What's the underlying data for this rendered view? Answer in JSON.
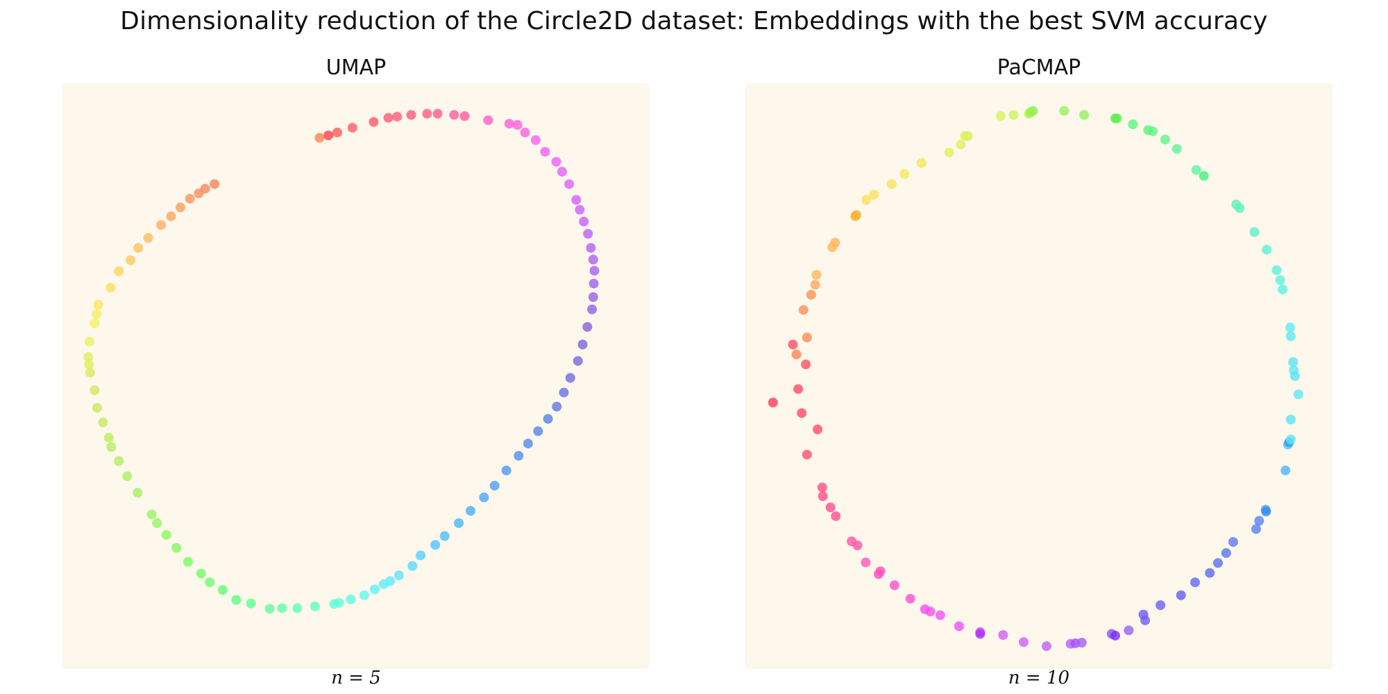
{
  "suptitle": "Dimensionality reduction of the Circle2D dataset: Embeddings with the best SVM accuracy",
  "chart_data": [
    {
      "type": "scatter",
      "title": "UMAP",
      "xlabel": "n = 5",
      "grid": false,
      "xlim": [
        0,
        100
      ],
      "ylim": [
        0,
        100
      ],
      "color_encoding": "hue (rainbow, cyclic)",
      "points": [
        {
          "x": 43.8,
          "y": 90.7,
          "c": "#f6894d"
        },
        {
          "x": 45.3,
          "y": 91.1,
          "c": "#ff3e50"
        },
        {
          "x": 46.8,
          "y": 91.6,
          "c": "#ff5a5d"
        },
        {
          "x": 49.4,
          "y": 92.4,
          "c": "#ff5e66"
        },
        {
          "x": 53.0,
          "y": 93.4,
          "c": "#ff5a6e"
        },
        {
          "x": 55.5,
          "y": 94.1,
          "c": "#ff5b76"
        },
        {
          "x": 57.0,
          "y": 94.3,
          "c": "#ff5c79"
        },
        {
          "x": 59.4,
          "y": 94.6,
          "c": "#ff5b83"
        },
        {
          "x": 62.1,
          "y": 94.8,
          "c": "#ff5c8b"
        },
        {
          "x": 63.9,
          "y": 94.8,
          "c": "#ff5c8f"
        },
        {
          "x": 66.7,
          "y": 94.6,
          "c": "#ff5c9c"
        },
        {
          "x": 68.5,
          "y": 94.4,
          "c": "#ff5ca3"
        },
        {
          "x": 72.5,
          "y": 93.7,
          "c": "#ff5cc7"
        },
        {
          "x": 76.1,
          "y": 93.1,
          "c": "#ff5ed9"
        },
        {
          "x": 77.5,
          "y": 92.9,
          "c": "#ff5ee0"
        },
        {
          "x": 78.8,
          "y": 91.6,
          "c": "#ff5ee8"
        },
        {
          "x": 80.6,
          "y": 90.3,
          "c": "#fb5ff2"
        },
        {
          "x": 82.2,
          "y": 88.3,
          "c": "#f35ff7"
        },
        {
          "x": 84.1,
          "y": 86.6,
          "c": "#ec5ffd"
        },
        {
          "x": 85.1,
          "y": 84.9,
          "c": "#e55fff"
        },
        {
          "x": 86.3,
          "y": 82.8,
          "c": "#dd5fff"
        },
        {
          "x": 87.5,
          "y": 80.1,
          "c": "#d35fff"
        },
        {
          "x": 88.1,
          "y": 78.4,
          "c": "#cc5fff"
        },
        {
          "x": 88.8,
          "y": 76.4,
          "c": "#c45fff"
        },
        {
          "x": 89.5,
          "y": 74.3,
          "c": "#bc5ffd"
        },
        {
          "x": 90.0,
          "y": 71.9,
          "c": "#b45ff7"
        },
        {
          "x": 90.4,
          "y": 69.9,
          "c": "#ad5ff3"
        },
        {
          "x": 90.6,
          "y": 68.0,
          "c": "#a75fef"
        },
        {
          "x": 90.5,
          "y": 65.8,
          "c": "#a05fea"
        },
        {
          "x": 90.4,
          "y": 63.5,
          "c": "#985fe6"
        },
        {
          "x": 90.2,
          "y": 61.4,
          "c": "#925fe0"
        },
        {
          "x": 89.4,
          "y": 58.4,
          "c": "#865fdb"
        },
        {
          "x": 88.6,
          "y": 55.4,
          "c": "#7d63da"
        },
        {
          "x": 87.8,
          "y": 52.6,
          "c": "#7468dc"
        },
        {
          "x": 86.5,
          "y": 49.7,
          "c": "#6b6ddd"
        },
        {
          "x": 85.4,
          "y": 47.2,
          "c": "#6673df"
        },
        {
          "x": 84.2,
          "y": 44.8,
          "c": "#5f78e1"
        },
        {
          "x": 82.7,
          "y": 42.7,
          "c": "#5a7fe3"
        },
        {
          "x": 81.0,
          "y": 40.6,
          "c": "#5785e6"
        },
        {
          "x": 79.3,
          "y": 38.5,
          "c": "#558ae9"
        },
        {
          "x": 77.7,
          "y": 36.4,
          "c": "#5190ec"
        },
        {
          "x": 75.6,
          "y": 33.9,
          "c": "#4f98ef"
        },
        {
          "x": 73.6,
          "y": 31.3,
          "c": "#4e9ff2"
        },
        {
          "x": 71.8,
          "y": 29.3,
          "c": "#4ca6f5"
        },
        {
          "x": 69.5,
          "y": 27.0,
          "c": "#4baef8"
        },
        {
          "x": 67.5,
          "y": 24.9,
          "c": "#4ab6fb"
        },
        {
          "x": 65.1,
          "y": 22.7,
          "c": "#4bbffd"
        },
        {
          "x": 63.5,
          "y": 21.2,
          "c": "#4ec7fe"
        },
        {
          "x": 61.0,
          "y": 19.4,
          "c": "#55d1ff"
        },
        {
          "x": 59.6,
          "y": 17.6,
          "c": "#5ad9ff"
        },
        {
          "x": 57.3,
          "y": 16.0,
          "c": "#5fe3ff"
        },
        {
          "x": 55.8,
          "y": 15.0,
          "c": "#5fe9ff"
        },
        {
          "x": 54.7,
          "y": 14.5,
          "c": "#5fedfd"
        },
        {
          "x": 53.2,
          "y": 13.6,
          "c": "#5ff3f6"
        },
        {
          "x": 51.4,
          "y": 12.6,
          "c": "#5ff8ee"
        },
        {
          "x": 49.1,
          "y": 11.9,
          "c": "#5ffbe3"
        },
        {
          "x": 47.1,
          "y": 11.3,
          "c": "#5ffcdb"
        },
        {
          "x": 46.3,
          "y": 11.1,
          "c": "#5ffcd6"
        },
        {
          "x": 43.0,
          "y": 10.7,
          "c": "#5ffdc4"
        },
        {
          "x": 40.0,
          "y": 10.4,
          "c": "#5ffcb5"
        },
        {
          "x": 37.4,
          "y": 10.4,
          "c": "#5ffcab"
        },
        {
          "x": 35.3,
          "y": 10.3,
          "c": "#5ffc9f"
        },
        {
          "x": 32.1,
          "y": 11.2,
          "c": "#5ffc8e"
        },
        {
          "x": 29.6,
          "y": 11.8,
          "c": "#5ffb82"
        },
        {
          "x": 27.3,
          "y": 13.5,
          "c": "#63fb78"
        },
        {
          "x": 25.1,
          "y": 14.8,
          "c": "#6cfb6f"
        },
        {
          "x": 23.6,
          "y": 16.3,
          "c": "#73fb66"
        },
        {
          "x": 21.4,
          "y": 18.3,
          "c": "#7bfa5f"
        },
        {
          "x": 19.4,
          "y": 20.7,
          "c": "#84f95f"
        },
        {
          "x": 17.7,
          "y": 22.9,
          "c": "#8bf85f"
        },
        {
          "x": 16.1,
          "y": 24.9,
          "c": "#93f65f"
        },
        {
          "x": 15.2,
          "y": 26.4,
          "c": "#99f55f"
        },
        {
          "x": 12.8,
          "y": 30.1,
          "c": "#a2f35f"
        },
        {
          "x": 11.0,
          "y": 32.9,
          "c": "#a9f15f"
        },
        {
          "x": 9.6,
          "y": 35.5,
          "c": "#b0ef5f"
        },
        {
          "x": 8.3,
          "y": 37.9,
          "c": "#b6ee5f"
        },
        {
          "x": 7.9,
          "y": 39.5,
          "c": "#bbec5f"
        },
        {
          "x": 6.9,
          "y": 42.1,
          "c": "#c2eb5f"
        },
        {
          "x": 5.9,
          "y": 44.6,
          "c": "#c9e95f"
        },
        {
          "x": 5.5,
          "y": 47.6,
          "c": "#d0e95f"
        },
        {
          "x": 4.7,
          "y": 50.6,
          "c": "#d9ea5f"
        },
        {
          "x": 4.5,
          "y": 52.0,
          "c": "#dfec5f"
        },
        {
          "x": 4.4,
          "y": 53.3,
          "c": "#e4ee5f"
        },
        {
          "x": 4.6,
          "y": 55.9,
          "c": "#ebf05f"
        },
        {
          "x": 5.5,
          "y": 59.0,
          "c": "#f2f15f"
        },
        {
          "x": 5.8,
          "y": 60.6,
          "c": "#f6ee5f"
        },
        {
          "x": 6.1,
          "y": 62.2,
          "c": "#f9e85f"
        },
        {
          "x": 8.2,
          "y": 65.1,
          "c": "#fcdf5f"
        },
        {
          "x": 9.6,
          "y": 67.9,
          "c": "#fdd55f"
        },
        {
          "x": 11.6,
          "y": 69.8,
          "c": "#fdcb5f"
        },
        {
          "x": 12.9,
          "y": 71.9,
          "c": "#fcc35f"
        },
        {
          "x": 14.6,
          "y": 73.6,
          "c": "#fbbb5f"
        },
        {
          "x": 16.8,
          "y": 75.8,
          "c": "#faaf5f"
        },
        {
          "x": 18.5,
          "y": 77.3,
          "c": "#f9a75f"
        },
        {
          "x": 20.1,
          "y": 78.8,
          "c": "#f99e5f"
        },
        {
          "x": 21.7,
          "y": 80.3,
          "c": "#f8965f"
        },
        {
          "x": 23.2,
          "y": 81.2,
          "c": "#f7905f"
        },
        {
          "x": 24.3,
          "y": 82.0,
          "c": "#f68a5f"
        },
        {
          "x": 25.9,
          "y": 82.8,
          "c": "#f5835f"
        }
      ]
    },
    {
      "type": "scatter",
      "title": "PaCMAP",
      "xlabel": "n = 10",
      "grid": false,
      "xlim": [
        0,
        100
      ],
      "ylim": [
        0,
        100
      ],
      "color_encoding": "hue (rainbow, cyclic)",
      "points": [
        {
          "x": 4.7,
          "y": 45.5,
          "c": "#ff3f55"
        },
        {
          "x": 8.1,
          "y": 55.4,
          "c": "#ff4f60"
        },
        {
          "x": 8.7,
          "y": 53.7,
          "c": "#fb8554"
        },
        {
          "x": 9.0,
          "y": 47.8,
          "c": "#ff4d62"
        },
        {
          "x": 9.6,
          "y": 43.7,
          "c": "#ff4a66"
        },
        {
          "x": 9.9,
          "y": 61.3,
          "c": "#fb8f55"
        },
        {
          "x": 10.3,
          "y": 52.0,
          "c": "#ff4f61"
        },
        {
          "x": 10.5,
          "y": 56.6,
          "c": "#fb8c53"
        },
        {
          "x": 10.5,
          "y": 36.6,
          "c": "#ff4f70"
        },
        {
          "x": 11.2,
          "y": 63.9,
          "c": "#fb9155"
        },
        {
          "x": 11.9,
          "y": 65.6,
          "c": "#fba85b"
        },
        {
          "x": 12.1,
          "y": 67.3,
          "c": "#fbb85c"
        },
        {
          "x": 12.3,
          "y": 40.9,
          "c": "#ff4e6c"
        },
        {
          "x": 13.1,
          "y": 31.0,
          "c": "#ff4f88"
        },
        {
          "x": 13.2,
          "y": 29.5,
          "c": "#ff4f8a"
        },
        {
          "x": 14.5,
          "y": 27.6,
          "c": "#ff4f90"
        },
        {
          "x": 14.8,
          "y": 72.0,
          "c": "#fbb85c"
        },
        {
          "x": 15.3,
          "y": 72.8,
          "c": "#fbb45c"
        },
        {
          "x": 15.4,
          "y": 26.1,
          "c": "#ff4f94"
        },
        {
          "x": 18.1,
          "y": 21.8,
          "c": "#ff55a4"
        },
        {
          "x": 18.7,
          "y": 77.3,
          "c": "#fbb548"
        },
        {
          "x": 18.9,
          "y": 77.5,
          "c": "#f8b12e"
        },
        {
          "x": 19.1,
          "y": 21.1,
          "c": "#ff55aa"
        },
        {
          "x": 20.5,
          "y": 18.2,
          "c": "#ff57b6"
        },
        {
          "x": 20.6,
          "y": 80.1,
          "c": "#fbe15c"
        },
        {
          "x": 21.9,
          "y": 81.0,
          "c": "#fbe15c"
        },
        {
          "x": 22.7,
          "y": 16.2,
          "c": "#ff4fbf"
        },
        {
          "x": 23.0,
          "y": 16.7,
          "c": "#ff4fbd"
        },
        {
          "x": 24.9,
          "y": 82.8,
          "c": "#fbe45c"
        },
        {
          "x": 25.4,
          "y": 14.3,
          "c": "#ff4fc8"
        },
        {
          "x": 27.1,
          "y": 84.5,
          "c": "#f5e75c"
        },
        {
          "x": 28.1,
          "y": 12.0,
          "c": "#ff4fd2"
        },
        {
          "x": 30.0,
          "y": 86.4,
          "c": "#eeea5c"
        },
        {
          "x": 30.6,
          "y": 10.2,
          "c": "#f84ff0"
        },
        {
          "x": 31.5,
          "y": 9.8,
          "c": "#f84fe8"
        },
        {
          "x": 33.2,
          "y": 9.2,
          "c": "#f84ff0"
        },
        {
          "x": 34.7,
          "y": 88.2,
          "c": "#e4ee5c"
        },
        {
          "x": 36.4,
          "y": 7.3,
          "c": "#f04ff8"
        },
        {
          "x": 36.7,
          "y": 89.5,
          "c": "#dcf05c"
        },
        {
          "x": 37.4,
          "y": 91.0,
          "c": "#d8f25c"
        },
        {
          "x": 37.9,
          "y": 91.0,
          "c": "#d8f25c"
        },
        {
          "x": 40.0,
          "y": 6.3,
          "c": "#c84ffa"
        },
        {
          "x": 40.0,
          "y": 6.0,
          "c": "#b02ef5"
        },
        {
          "x": 43.9,
          "y": 5.8,
          "c": "#d05ff8"
        },
        {
          "x": 43.5,
          "y": 94.4,
          "c": "#d6f45c"
        },
        {
          "x": 45.7,
          "y": 94.6,
          "c": "#c9f55c"
        },
        {
          "x": 47.4,
          "y": 4.6,
          "c": "#d05ffa"
        },
        {
          "x": 48.3,
          "y": 94.8,
          "c": "#b5f25c"
        },
        {
          "x": 48.6,
          "y": 95.1,
          "c": "#9ef23e"
        },
        {
          "x": 49.0,
          "y": 95.3,
          "c": "#8cf255"
        },
        {
          "x": 51.3,
          "y": 3.9,
          "c": "#c45ff9"
        },
        {
          "x": 54.3,
          "y": 95.3,
          "c": "#96f25c"
        },
        {
          "x": 55.4,
          "y": 4.3,
          "c": "#b75ff9"
        },
        {
          "x": 56.2,
          "y": 4.4,
          "c": "#a64ff9"
        },
        {
          "x": 57.3,
          "y": 4.5,
          "c": "#a55ff9"
        },
        {
          "x": 57.7,
          "y": 94.6,
          "c": "#8ff25c"
        },
        {
          "x": 62.4,
          "y": 6.0,
          "c": "#8f4ff9"
        },
        {
          "x": 63.0,
          "y": 5.7,
          "c": "#7a2ef0"
        },
        {
          "x": 63.0,
          "y": 94.0,
          "c": "#57ef3a"
        },
        {
          "x": 63.3,
          "y": 94.0,
          "c": "#5cef5c"
        },
        {
          "x": 65.3,
          "y": 6.6,
          "c": "#9a5ff8"
        },
        {
          "x": 66.0,
          "y": 93.0,
          "c": "#5cf57d"
        },
        {
          "x": 67.8,
          "y": 9.3,
          "c": "#6d59f4"
        },
        {
          "x": 68.1,
          "y": 8.3,
          "c": "#6b5ff0"
        },
        {
          "x": 68.6,
          "y": 92.0,
          "c": "#5cf579"
        },
        {
          "x": 69.4,
          "y": 91.8,
          "c": "#5cf586"
        },
        {
          "x": 70.7,
          "y": 10.9,
          "c": "#6c5ff0"
        },
        {
          "x": 71.5,
          "y": 90.4,
          "c": "#5cf589"
        },
        {
          "x": 73.5,
          "y": 88.8,
          "c": "#5cf59a"
        },
        {
          "x": 74.2,
          "y": 12.6,
          "c": "#5e5ff0"
        },
        {
          "x": 76.6,
          "y": 14.8,
          "c": "#5e69f0"
        },
        {
          "x": 76.8,
          "y": 85.2,
          "c": "#5cf5a1"
        },
        {
          "x": 78.1,
          "y": 84.2,
          "c": "#45f07e"
        },
        {
          "x": 79.1,
          "y": 16.4,
          "c": "#5a6cf0"
        },
        {
          "x": 80.5,
          "y": 18.1,
          "c": "#5970f0"
        },
        {
          "x": 81.9,
          "y": 19.8,
          "c": "#5a74f0"
        },
        {
          "x": 83.1,
          "y": 21.7,
          "c": "#597af0"
        },
        {
          "x": 83.6,
          "y": 79.3,
          "c": "#5cf0b3"
        },
        {
          "x": 84.2,
          "y": 78.7,
          "c": "#5cf0c1"
        },
        {
          "x": 86.7,
          "y": 74.6,
          "c": "#5cf0c8"
        },
        {
          "x": 87.0,
          "y": 23.9,
          "c": "#5a82f0"
        },
        {
          "x": 87.5,
          "y": 25.3,
          "c": "#5685f0"
        },
        {
          "x": 88.6,
          "y": 27.2,
          "c": "#4fa4f0"
        },
        {
          "x": 88.7,
          "y": 26.9,
          "c": "#2e8cf0"
        },
        {
          "x": 88.8,
          "y": 71.6,
          "c": "#5cf0d2"
        },
        {
          "x": 90.5,
          "y": 68.1,
          "c": "#5cf0dc"
        },
        {
          "x": 91.1,
          "y": 66.4,
          "c": "#5cf0e0"
        },
        {
          "x": 91.5,
          "y": 64.8,
          "c": "#5cf0e4"
        },
        {
          "x": 92.0,
          "y": 33.9,
          "c": "#4fb4f5"
        },
        {
          "x": 92.4,
          "y": 38.3,
          "c": "#5cc4f5"
        },
        {
          "x": 92.6,
          "y": 38.7,
          "c": "#2e9ef5"
        },
        {
          "x": 92.8,
          "y": 58.3,
          "c": "#5cecf0"
        },
        {
          "x": 92.9,
          "y": 42.6,
          "c": "#5ce4f5"
        },
        {
          "x": 92.9,
          "y": 39.2,
          "c": "#5ce4f5"
        },
        {
          "x": 92.9,
          "y": 56.8,
          "c": "#5ceaf0"
        },
        {
          "x": 93.3,
          "y": 52.4,
          "c": "#5ce4f5"
        },
        {
          "x": 93.4,
          "y": 51.0,
          "c": "#5ce7f5"
        },
        {
          "x": 93.6,
          "y": 50.0,
          "c": "#5ce4f5"
        },
        {
          "x": 94.2,
          "y": 46.9,
          "c": "#5ce7f5"
        }
      ]
    }
  ]
}
